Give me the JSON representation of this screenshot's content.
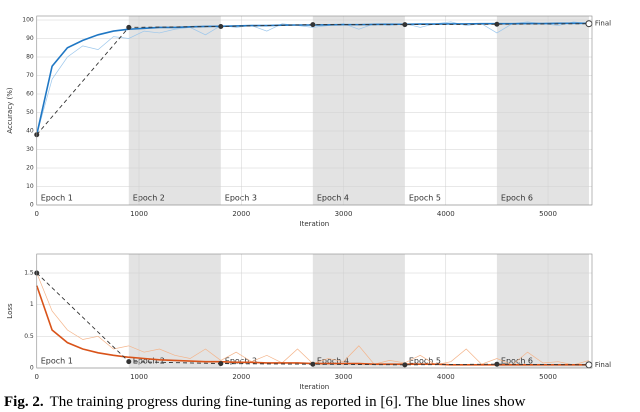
{
  "chart_data": [
    {
      "type": "line",
      "ylabel": "Accuracy (%)",
      "xlabel": "Iteration",
      "xlim": [
        0,
        5430
      ],
      "ylim": [
        0,
        100
      ],
      "xticks": [
        0,
        1000,
        2000,
        3000,
        4000,
        5000
      ],
      "yticks": [
        0,
        10,
        20,
        30,
        40,
        50,
        60,
        70,
        80,
        90,
        100
      ],
      "grid": true,
      "epochs": [
        "Epoch 1",
        "Epoch 2",
        "Epoch 3",
        "Epoch 4",
        "Epoch 5",
        "Epoch 6"
      ],
      "epoch_bounds": [
        0,
        900,
        1800,
        2700,
        3600,
        4500,
        5400
      ],
      "final_label": "Final",
      "series": [
        {
          "color": "#9cc7ec",
          "style": "raw",
          "x": [
            0,
            150,
            300,
            450,
            600,
            750,
            900,
            1050,
            1200,
            1350,
            1500,
            1650,
            1800,
            1950,
            2100,
            2250,
            2400,
            2550,
            2700,
            2850,
            3000,
            3150,
            3300,
            3450,
            3600,
            3750,
            3900,
            4050,
            4200,
            4350,
            4500,
            4650,
            4800,
            4950,
            5100,
            5250,
            5400
          ],
          "values": [
            38,
            68,
            80,
            86,
            84,
            91,
            90,
            94,
            93,
            95,
            96,
            92,
            97,
            96,
            97,
            94,
            98,
            97,
            96,
            97,
            98,
            95,
            98,
            97,
            98,
            96,
            98,
            99,
            97,
            98,
            93,
            98,
            99,
            98,
            97,
            99,
            98
          ]
        },
        {
          "color": "#1f77c4",
          "style": "smooth",
          "x": [
            0,
            150,
            300,
            450,
            600,
            750,
            900,
            1050,
            1200,
            1350,
            1500,
            1650,
            1800,
            1950,
            2100,
            2250,
            2400,
            2550,
            2700,
            2850,
            3000,
            3150,
            3300,
            3450,
            3600,
            3750,
            3900,
            4050,
            4200,
            4350,
            4500,
            4650,
            4800,
            4950,
            5100,
            5250,
            5400
          ],
          "values": [
            38,
            75,
            85,
            89,
            92,
            94,
            95,
            95.5,
            96,
            96,
            96.3,
            96.5,
            96.6,
            96.8,
            97,
            97,
            97.2,
            97.3,
            97.3,
            97.4,
            97.5,
            97.5,
            97.6,
            97.7,
            97.7,
            97.8,
            97.8,
            97.9,
            97.9,
            98,
            98,
            98,
            98.1,
            98.1,
            98.2,
            98.2,
            98.2
          ]
        },
        {
          "color": "#333333",
          "style": "validation",
          "x": [
            0,
            900,
            1800,
            2700,
            3600,
            4500,
            5400
          ],
          "values": [
            38,
            96,
            96.5,
            97.5,
            97.5,
            97.7,
            98
          ]
        }
      ]
    },
    {
      "type": "line",
      "ylabel": "Loss",
      "xlabel": "Iteration",
      "xlim": [
        0,
        5430
      ],
      "ylim": [
        0,
        1.8
      ],
      "xticks": [
        0,
        1000,
        2000,
        3000,
        4000,
        5000
      ],
      "yticks": [
        0,
        0.5,
        1,
        1.5
      ],
      "grid": true,
      "epochs": [
        "Epoch 1",
        "Epoch 2",
        "Epoch 3",
        "Epoch 4",
        "Epoch 5",
        "Epoch 6"
      ],
      "epoch_bounds": [
        0,
        900,
        1800,
        2700,
        3600,
        4500,
        5400
      ],
      "final_label": "Final",
      "series": [
        {
          "color": "#f4b48a",
          "style": "raw",
          "x": [
            0,
            150,
            300,
            450,
            600,
            750,
            900,
            1050,
            1200,
            1350,
            1500,
            1650,
            1800,
            1950,
            2100,
            2250,
            2400,
            2550,
            2700,
            2850,
            3000,
            3150,
            3300,
            3450,
            3600,
            3750,
            3900,
            4050,
            4200,
            4350,
            4500,
            4650,
            4800,
            4950,
            5100,
            5250,
            5400
          ],
          "values": [
            1.5,
            0.9,
            0.6,
            0.45,
            0.5,
            0.3,
            0.35,
            0.25,
            0.3,
            0.2,
            0.15,
            0.3,
            0.12,
            0.25,
            0.1,
            0.2,
            0.08,
            0.3,
            0.07,
            0.15,
            0.1,
            0.35,
            0.06,
            0.12,
            0.08,
            0.2,
            0.05,
            0.1,
            0.3,
            0.06,
            0.15,
            0.05,
            0.25,
            0.08,
            0.1,
            0.05,
            0.12
          ]
        },
        {
          "color": "#d95319",
          "style": "smooth",
          "x": [
            0,
            150,
            300,
            450,
            600,
            750,
            900,
            1050,
            1200,
            1350,
            1500,
            1650,
            1800,
            1950,
            2100,
            2250,
            2400,
            2550,
            2700,
            2850,
            3000,
            3150,
            3300,
            3450,
            3600,
            3750,
            3900,
            4050,
            4200,
            4350,
            4500,
            4650,
            4800,
            4950,
            5100,
            5250,
            5400
          ],
          "values": [
            1.3,
            0.6,
            0.4,
            0.3,
            0.24,
            0.2,
            0.17,
            0.15,
            0.13,
            0.12,
            0.11,
            0.1,
            0.1,
            0.09,
            0.09,
            0.08,
            0.08,
            0.08,
            0.07,
            0.07,
            0.07,
            0.07,
            0.06,
            0.06,
            0.06,
            0.06,
            0.06,
            0.05,
            0.05,
            0.05,
            0.05,
            0.05,
            0.05,
            0.05,
            0.05,
            0.05,
            0.05
          ]
        },
        {
          "color": "#333333",
          "style": "validation",
          "x": [
            0,
            900,
            1800,
            2700,
            3600,
            4500,
            5400
          ],
          "values": [
            1.5,
            0.1,
            0.07,
            0.06,
            0.05,
            0.06,
            0.05
          ]
        }
      ]
    }
  ],
  "caption": {
    "label": "Fig. 2.",
    "text": "The training progress during fine-tuning as reported in [6]. The blue lines show"
  }
}
